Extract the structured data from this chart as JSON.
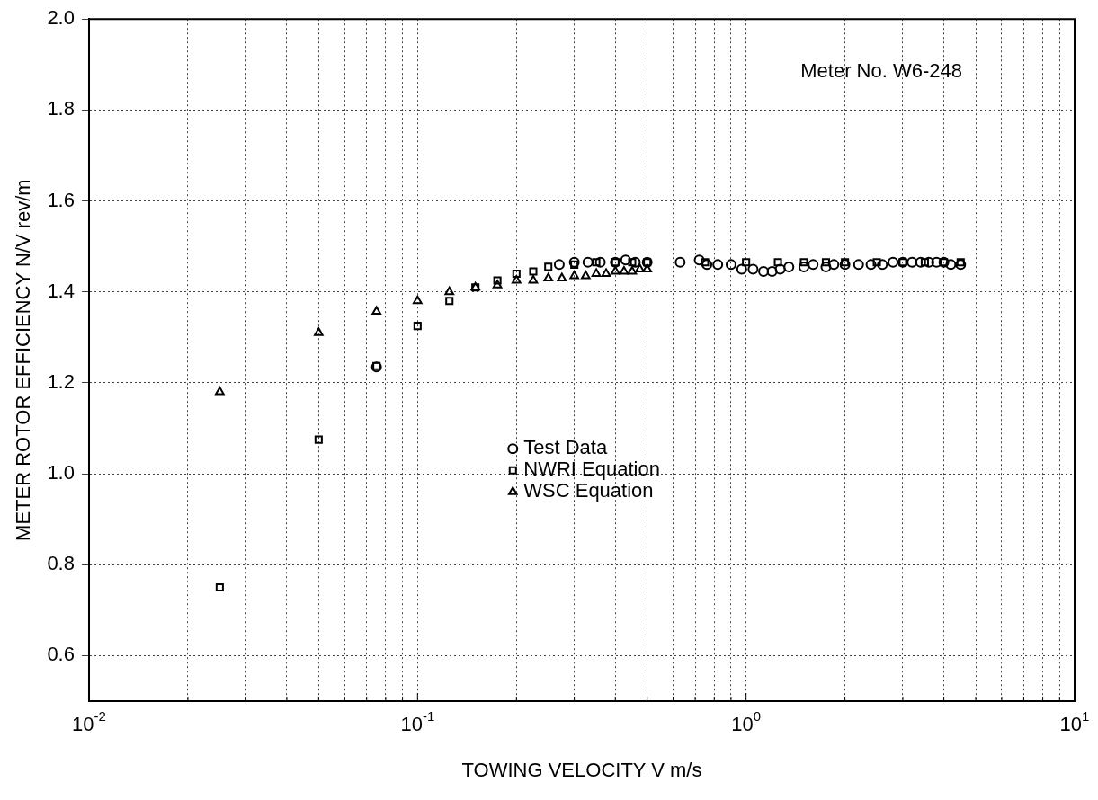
{
  "chart_data": {
    "type": "scatter",
    "xlabel": "TOWING VELOCITY V m/s",
    "ylabel": "METER ROTOR EFFICIENCY N/V rev/m",
    "log": "x",
    "grid": true,
    "legend": "center",
    "xlim": [
      0.01,
      10
    ],
    "ylim": [
      0.5,
      2.0
    ],
    "xticks": [
      {
        "value": 0.01,
        "label": "10$^{-2}$"
      },
      {
        "value": 0.02,
        "label": null
      },
      {
        "value": 0.03,
        "label": null
      },
      {
        "value": 0.04,
        "label": null
      },
      {
        "value": 0.05,
        "label": null
      },
      {
        "value": 0.06,
        "label": null
      },
      {
        "value": 0.07,
        "label": null
      },
      {
        "value": 0.08,
        "label": null
      },
      {
        "value": 0.09,
        "label": null
      },
      {
        "value": 0.1,
        "label": "10$^{-1}$"
      },
      {
        "value": 0.2,
        "label": null
      },
      {
        "value": 0.3,
        "label": null
      },
      {
        "value": 0.4,
        "label": null
      },
      {
        "value": 0.5,
        "label": null
      },
      {
        "value": 0.6,
        "label": null
      },
      {
        "value": 0.7,
        "label": null
      },
      {
        "value": 0.8,
        "label": null
      },
      {
        "value": 0.9,
        "label": null
      },
      {
        "value": 1,
        "label": "10$^{0}$"
      },
      {
        "value": 2,
        "label": null
      },
      {
        "value": 3,
        "label": null
      },
      {
        "value": 4,
        "label": null
      },
      {
        "value": 5,
        "label": null
      },
      {
        "value": 6,
        "label": null
      },
      {
        "value": 7,
        "label": null
      },
      {
        "value": 8,
        "label": null
      },
      {
        "value": 9,
        "label": null
      },
      {
        "value": 10,
        "label": "10$^{1}$"
      }
    ],
    "yticks": [
      {
        "value": 0.6,
        "label": "0.6"
      },
      {
        "value": 0.8,
        "label": "0.8"
      },
      {
        "value": 1,
        "label": "1.0"
      },
      {
        "value": 1.2,
        "label": "1.2"
      },
      {
        "value": 1.4,
        "label": "1.4"
      },
      {
        "value": 1.6,
        "label": "1.6"
      },
      {
        "value": 1.8,
        "label": "1.8"
      },
      {
        "value": 2,
        "label": "2.0"
      }
    ],
    "annotations": [
      "Meter No. W6-248"
    ],
    "series": [
      {
        "name": "Test Data",
        "color": "#000000",
        "marker": "circle",
        "x": [
          0.075,
          0.27,
          0.3,
          0.33,
          0.36,
          0.4,
          0.43,
          0.46,
          0.5,
          0.63,
          0.72,
          0.76,
          0.82,
          0.9,
          0.97,
          1.05,
          1.13,
          1.2,
          1.27,
          1.35,
          1.5,
          1.6,
          1.75,
          1.85,
          2.0,
          2.2,
          2.4,
          2.6,
          2.8,
          3.0,
          3.2,
          3.4,
          3.6,
          3.8,
          4.0,
          4.2,
          4.5
        ],
        "values": [
          1.235,
          1.46,
          1.465,
          1.465,
          1.465,
          1.465,
          1.47,
          1.465,
          1.465,
          1.465,
          1.47,
          1.46,
          1.46,
          1.46,
          1.45,
          1.45,
          1.445,
          1.445,
          1.45,
          1.455,
          1.455,
          1.46,
          1.455,
          1.46,
          1.46,
          1.46,
          1.46,
          1.46,
          1.465,
          1.465,
          1.465,
          1.465,
          1.465,
          1.465,
          1.465,
          1.46,
          1.46
        ]
      },
      {
        "name": "NWRI Equation",
        "color": "#000000",
        "marker": "square",
        "x": [
          0.025,
          0.05,
          0.075,
          0.1,
          0.125,
          0.15,
          0.175,
          0.2,
          0.225,
          0.25,
          0.3,
          0.35,
          0.4,
          0.45,
          0.5,
          0.75,
          1.0,
          1.25,
          1.5,
          1.75,
          2.0,
          2.5,
          3.0,
          3.5,
          4.0,
          4.5
        ],
        "values": [
          0.75,
          1.075,
          1.237,
          1.325,
          1.38,
          1.41,
          1.425,
          1.44,
          1.445,
          1.455,
          1.46,
          1.465,
          1.465,
          1.465,
          1.465,
          1.465,
          1.465,
          1.465,
          1.465,
          1.465,
          1.465,
          1.465,
          1.465,
          1.465,
          1.465,
          1.465
        ]
      },
      {
        "name": "WSC Equation",
        "color": "#000000",
        "marker": "triangle",
        "x": [
          0.025,
          0.05,
          0.075,
          0.1,
          0.125,
          0.15,
          0.175,
          0.2,
          0.225,
          0.25,
          0.275,
          0.3,
          0.325,
          0.35,
          0.375,
          0.4,
          0.425,
          0.45,
          0.475,
          0.5
        ],
        "values": [
          1.18,
          1.31,
          1.357,
          1.38,
          1.4,
          1.41,
          1.415,
          1.425,
          1.425,
          1.43,
          1.43,
          1.435,
          1.435,
          1.44,
          1.44,
          1.445,
          1.445,
          1.445,
          1.45,
          1.45
        ]
      }
    ]
  }
}
